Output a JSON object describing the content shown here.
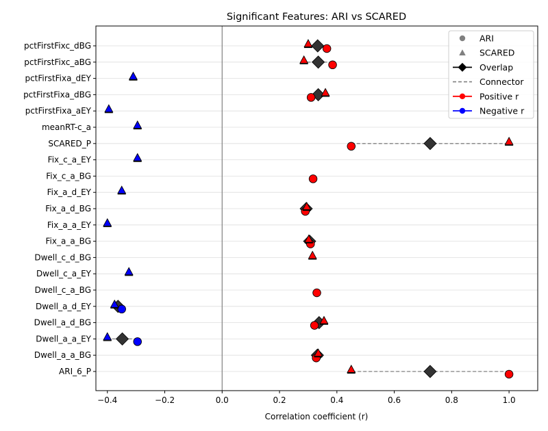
{
  "chart_data": {
    "type": "scatter",
    "title": "Significant Features: ARI vs SCARED",
    "xlabel": "Correlation coefficient (r)",
    "ylabel": "",
    "xlim": [
      -0.44,
      1.1
    ],
    "xticks": [
      -0.4,
      -0.2,
      0.0,
      0.2,
      0.4,
      0.6,
      0.8,
      1.0
    ],
    "xtick_labels": [
      "−0.4",
      "−0.2",
      "0.0",
      "0.2",
      "0.4",
      "0.6",
      "0.8",
      "1.0"
    ],
    "grid": "horizontal",
    "reference_line_x": 0.0,
    "legend_position": "top-right",
    "legend": [
      "ARI",
      "SCARED",
      "Overlap",
      "Connector",
      "Positive r",
      "Negative r"
    ],
    "colors": {
      "positive": "#ff0000",
      "negative": "#0000ff",
      "overlap": "#333333",
      "marker_neutral": "#808080",
      "grid": "#dddddd",
      "reference_line": "#808080"
    },
    "features": [
      "pctFirstFixc_dBG",
      "pctFirstFixc_aBG",
      "pctFirstFixa_dEY",
      "pctFirstFixa_dBG",
      "pctFirstFixa_aEY",
      "meanRT-c_a",
      "SCARED_P",
      "Fix_c_a_EY",
      "Fix_c_a_BG",
      "Fix_a_d_EY",
      "Fix_a_d_BG",
      "Fix_a_a_EY",
      "Fix_a_a_BG",
      "Dwell_c_d_BG",
      "Dwell_c_a_EY",
      "Dwell_c_a_BG",
      "Dwell_a_d_EY",
      "Dwell_a_d_BG",
      "Dwell_a_a_EY",
      "Dwell_a_a_BG",
      "ARI_6_P"
    ],
    "ari": [
      0.365,
      0.385,
      null,
      0.31,
      null,
      null,
      0.45,
      null,
      0.317,
      null,
      0.29,
      null,
      0.308,
      null,
      null,
      0.33,
      -0.35,
      0.322,
      -0.295,
      0.328,
      1.0
    ],
    "scared": [
      0.3,
      0.285,
      -0.31,
      0.36,
      -0.395,
      -0.295,
      1.0,
      -0.295,
      null,
      -0.35,
      0.295,
      -0.4,
      0.302,
      0.315,
      -0.325,
      null,
      -0.375,
      0.355,
      -0.4,
      0.335,
      0.45
    ],
    "overlap": [
      0.333,
      0.335,
      null,
      0.335,
      null,
      null,
      0.725,
      null,
      null,
      null,
      0.293,
      null,
      0.305,
      null,
      null,
      null,
      -0.363,
      0.338,
      -0.348,
      0.332,
      0.725
    ]
  }
}
